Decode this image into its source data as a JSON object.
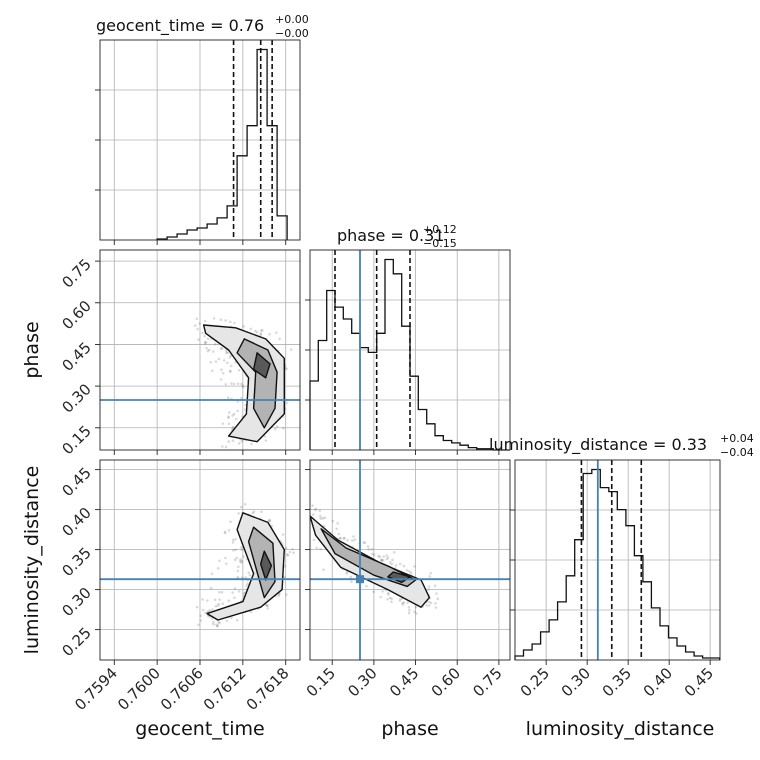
{
  "chart_data": {
    "type": "corner",
    "parameters": [
      "geocent_time",
      "phase",
      "luminosity_distance"
    ],
    "axis_labels": {
      "geocent_time": "geocent_time",
      "phase": "phase",
      "luminosity_distance": "luminosity_distance"
    },
    "ranges": {
      "geocent_time": [
        0.7592,
        0.762
      ],
      "phase": [
        0.07,
        0.79
      ],
      "luminosity_distance": [
        0.212,
        0.462
      ]
    },
    "ticks": {
      "geocent_time": [
        0.7594,
        0.76,
        0.7606,
        0.7612,
        0.7618
      ],
      "phase": [
        0.15,
        0.3,
        0.45,
        0.6,
        0.75
      ],
      "luminosity_distance": [
        0.25,
        0.3,
        0.35,
        0.4,
        0.45
      ]
    },
    "tick_labels": {
      "geocent_time": [
        "0.7594",
        "0.7600",
        "0.7606",
        "0.7612",
        "0.7618"
      ],
      "phase": [
        "0.15",
        "0.30",
        "0.45",
        "0.60",
        "0.75"
      ],
      "phase_y": [
        "0.15",
        "0.30",
        "0.45",
        "0.60",
        "0.75"
      ],
      "luminosity_distance": [
        "0.25",
        "0.30",
        "0.35",
        "0.40",
        "0.45"
      ],
      "luminosity_distance_y": [
        "0.25",
        "0.30",
        "0.35",
        "0.40",
        "0.45"
      ]
    },
    "titles": {
      "geocent_time": {
        "label": "geocent_time = 0.76",
        "plus": "+0.00",
        "minus": "−0.00"
      },
      "phase": {
        "label": "phase = 0.31",
        "plus": "+0.12",
        "minus": "−0.15"
      },
      "luminosity_distance": {
        "label": "luminosity_distance = 0.33",
        "plus": "+0.04",
        "minus": "−0.04"
      }
    },
    "quantiles": {
      "geocent_time": [
        0.76107,
        0.76145,
        0.76161
      ],
      "phase": [
        0.16,
        0.31,
        0.43
      ],
      "luminosity_distance": [
        0.293,
        0.33,
        0.366
      ]
    },
    "truths": {
      "geocent_time": null,
      "phase": 0.25,
      "luminosity_distance": 0.313
    },
    "histograms": {
      "geocent_time": {
        "edges": [
          0.76,
          0.76014,
          0.76028,
          0.76042,
          0.76056,
          0.7607,
          0.76084,
          0.76098,
          0.76112,
          0.76126,
          0.7614,
          0.76154,
          0.76168,
          0.76182
        ],
        "counts": [
          0.5,
          1.5,
          3,
          5,
          6,
          8,
          11,
          17,
          42,
          57,
          95,
          57,
          12,
          0
        ]
      },
      "phase": {
        "edges": [
          0.07,
          0.1,
          0.13,
          0.16,
          0.19,
          0.22,
          0.25,
          0.28,
          0.31,
          0.34,
          0.37,
          0.4,
          0.43,
          0.46,
          0.49,
          0.52,
          0.55,
          0.58,
          0.61,
          0.64,
          0.67,
          0.7,
          0.73,
          0.76,
          0.79
        ],
        "counts": [
          0.29,
          0.46,
          0.67,
          0.6,
          0.55,
          0.49,
          0.43,
          0.41,
          0.49,
          0.8,
          0.74,
          0.52,
          0.31,
          0.17,
          0.11,
          0.06,
          0.04,
          0.03,
          0.02,
          0.01,
          0.005,
          0.005,
          0,
          0
        ]
      },
      "luminosity_distance": {
        "edges": [
          0.212,
          0.2224,
          0.2328,
          0.2432,
          0.2536,
          0.264,
          0.2744,
          0.2848,
          0.2952,
          0.3056,
          0.316,
          0.3264,
          0.3368,
          0.3472,
          0.3576,
          0.368,
          0.3784,
          0.3888,
          0.3992,
          0.4096,
          0.42,
          0.4304,
          0.4408,
          0.4512,
          0.4616
        ],
        "counts": [
          0.02,
          0.05,
          0.08,
          0.14,
          0.2,
          0.29,
          0.42,
          0.6,
          0.93,
          0.95,
          0.86,
          0.84,
          0.75,
          0.67,
          0.52,
          0.39,
          0.26,
          0.17,
          0.11,
          0.07,
          0.04,
          0.02,
          0.01,
          0.01
        ]
      }
    },
    "contours_2d": {
      "phase_vs_geocent_time": [
        [
          [
            0.76065,
            0.52
          ],
          [
            0.7611,
            0.51
          ],
          [
            0.76152,
            0.47
          ],
          [
            0.76178,
            0.4
          ],
          [
            0.76178,
            0.2
          ],
          [
            0.7614,
            0.1
          ],
          [
            0.761,
            0.12
          ],
          [
            0.76125,
            0.2
          ],
          [
            0.76128,
            0.33
          ],
          [
            0.761,
            0.43
          ],
          [
            0.76068,
            0.49
          ]
        ],
        [
          [
            0.76122,
            0.47
          ],
          [
            0.76155,
            0.43
          ],
          [
            0.76168,
            0.35
          ],
          [
            0.76165,
            0.22
          ],
          [
            0.7615,
            0.15
          ],
          [
            0.76135,
            0.22
          ],
          [
            0.76138,
            0.35
          ],
          [
            0.76112,
            0.42
          ]
        ],
        [
          [
            0.7614,
            0.42
          ],
          [
            0.76158,
            0.38
          ],
          [
            0.76152,
            0.33
          ],
          [
            0.76135,
            0.36
          ]
        ]
      ],
      "luminosity_distance_vs_geocent_time": [
        [
          [
            0.7612,
            0.396
          ],
          [
            0.76155,
            0.384
          ],
          [
            0.76178,
            0.35
          ],
          [
            0.76175,
            0.3
          ],
          [
            0.76145,
            0.278
          ],
          [
            0.76085,
            0.262
          ],
          [
            0.7607,
            0.27
          ],
          [
            0.7612,
            0.285
          ],
          [
            0.76135,
            0.32
          ],
          [
            0.76112,
            0.375
          ]
        ],
        [
          [
            0.76135,
            0.378
          ],
          [
            0.76162,
            0.358
          ],
          [
            0.76165,
            0.31
          ],
          [
            0.7615,
            0.29
          ],
          [
            0.7614,
            0.322
          ],
          [
            0.76128,
            0.36
          ]
        ],
        [
          [
            0.7615,
            0.348
          ],
          [
            0.7616,
            0.33
          ],
          [
            0.76152,
            0.312
          ],
          [
            0.76145,
            0.332
          ]
        ]
      ],
      "luminosity_distance_vs_phase": [
        [
          [
            0.07,
            0.392
          ],
          [
            0.17,
            0.362
          ],
          [
            0.33,
            0.332
          ],
          [
            0.47,
            0.312
          ],
          [
            0.5,
            0.29
          ],
          [
            0.47,
            0.278
          ],
          [
            0.35,
            0.3
          ],
          [
            0.18,
            0.328
          ],
          [
            0.09,
            0.368
          ]
        ],
        [
          [
            0.11,
            0.376
          ],
          [
            0.2,
            0.352
          ],
          [
            0.36,
            0.328
          ],
          [
            0.45,
            0.312
          ],
          [
            0.42,
            0.304
          ],
          [
            0.3,
            0.318
          ],
          [
            0.16,
            0.345
          ]
        ],
        [
          [
            0.37,
            0.322
          ],
          [
            0.43,
            0.316
          ],
          [
            0.4,
            0.309
          ],
          [
            0.35,
            0.316
          ]
        ]
      ]
    }
  }
}
